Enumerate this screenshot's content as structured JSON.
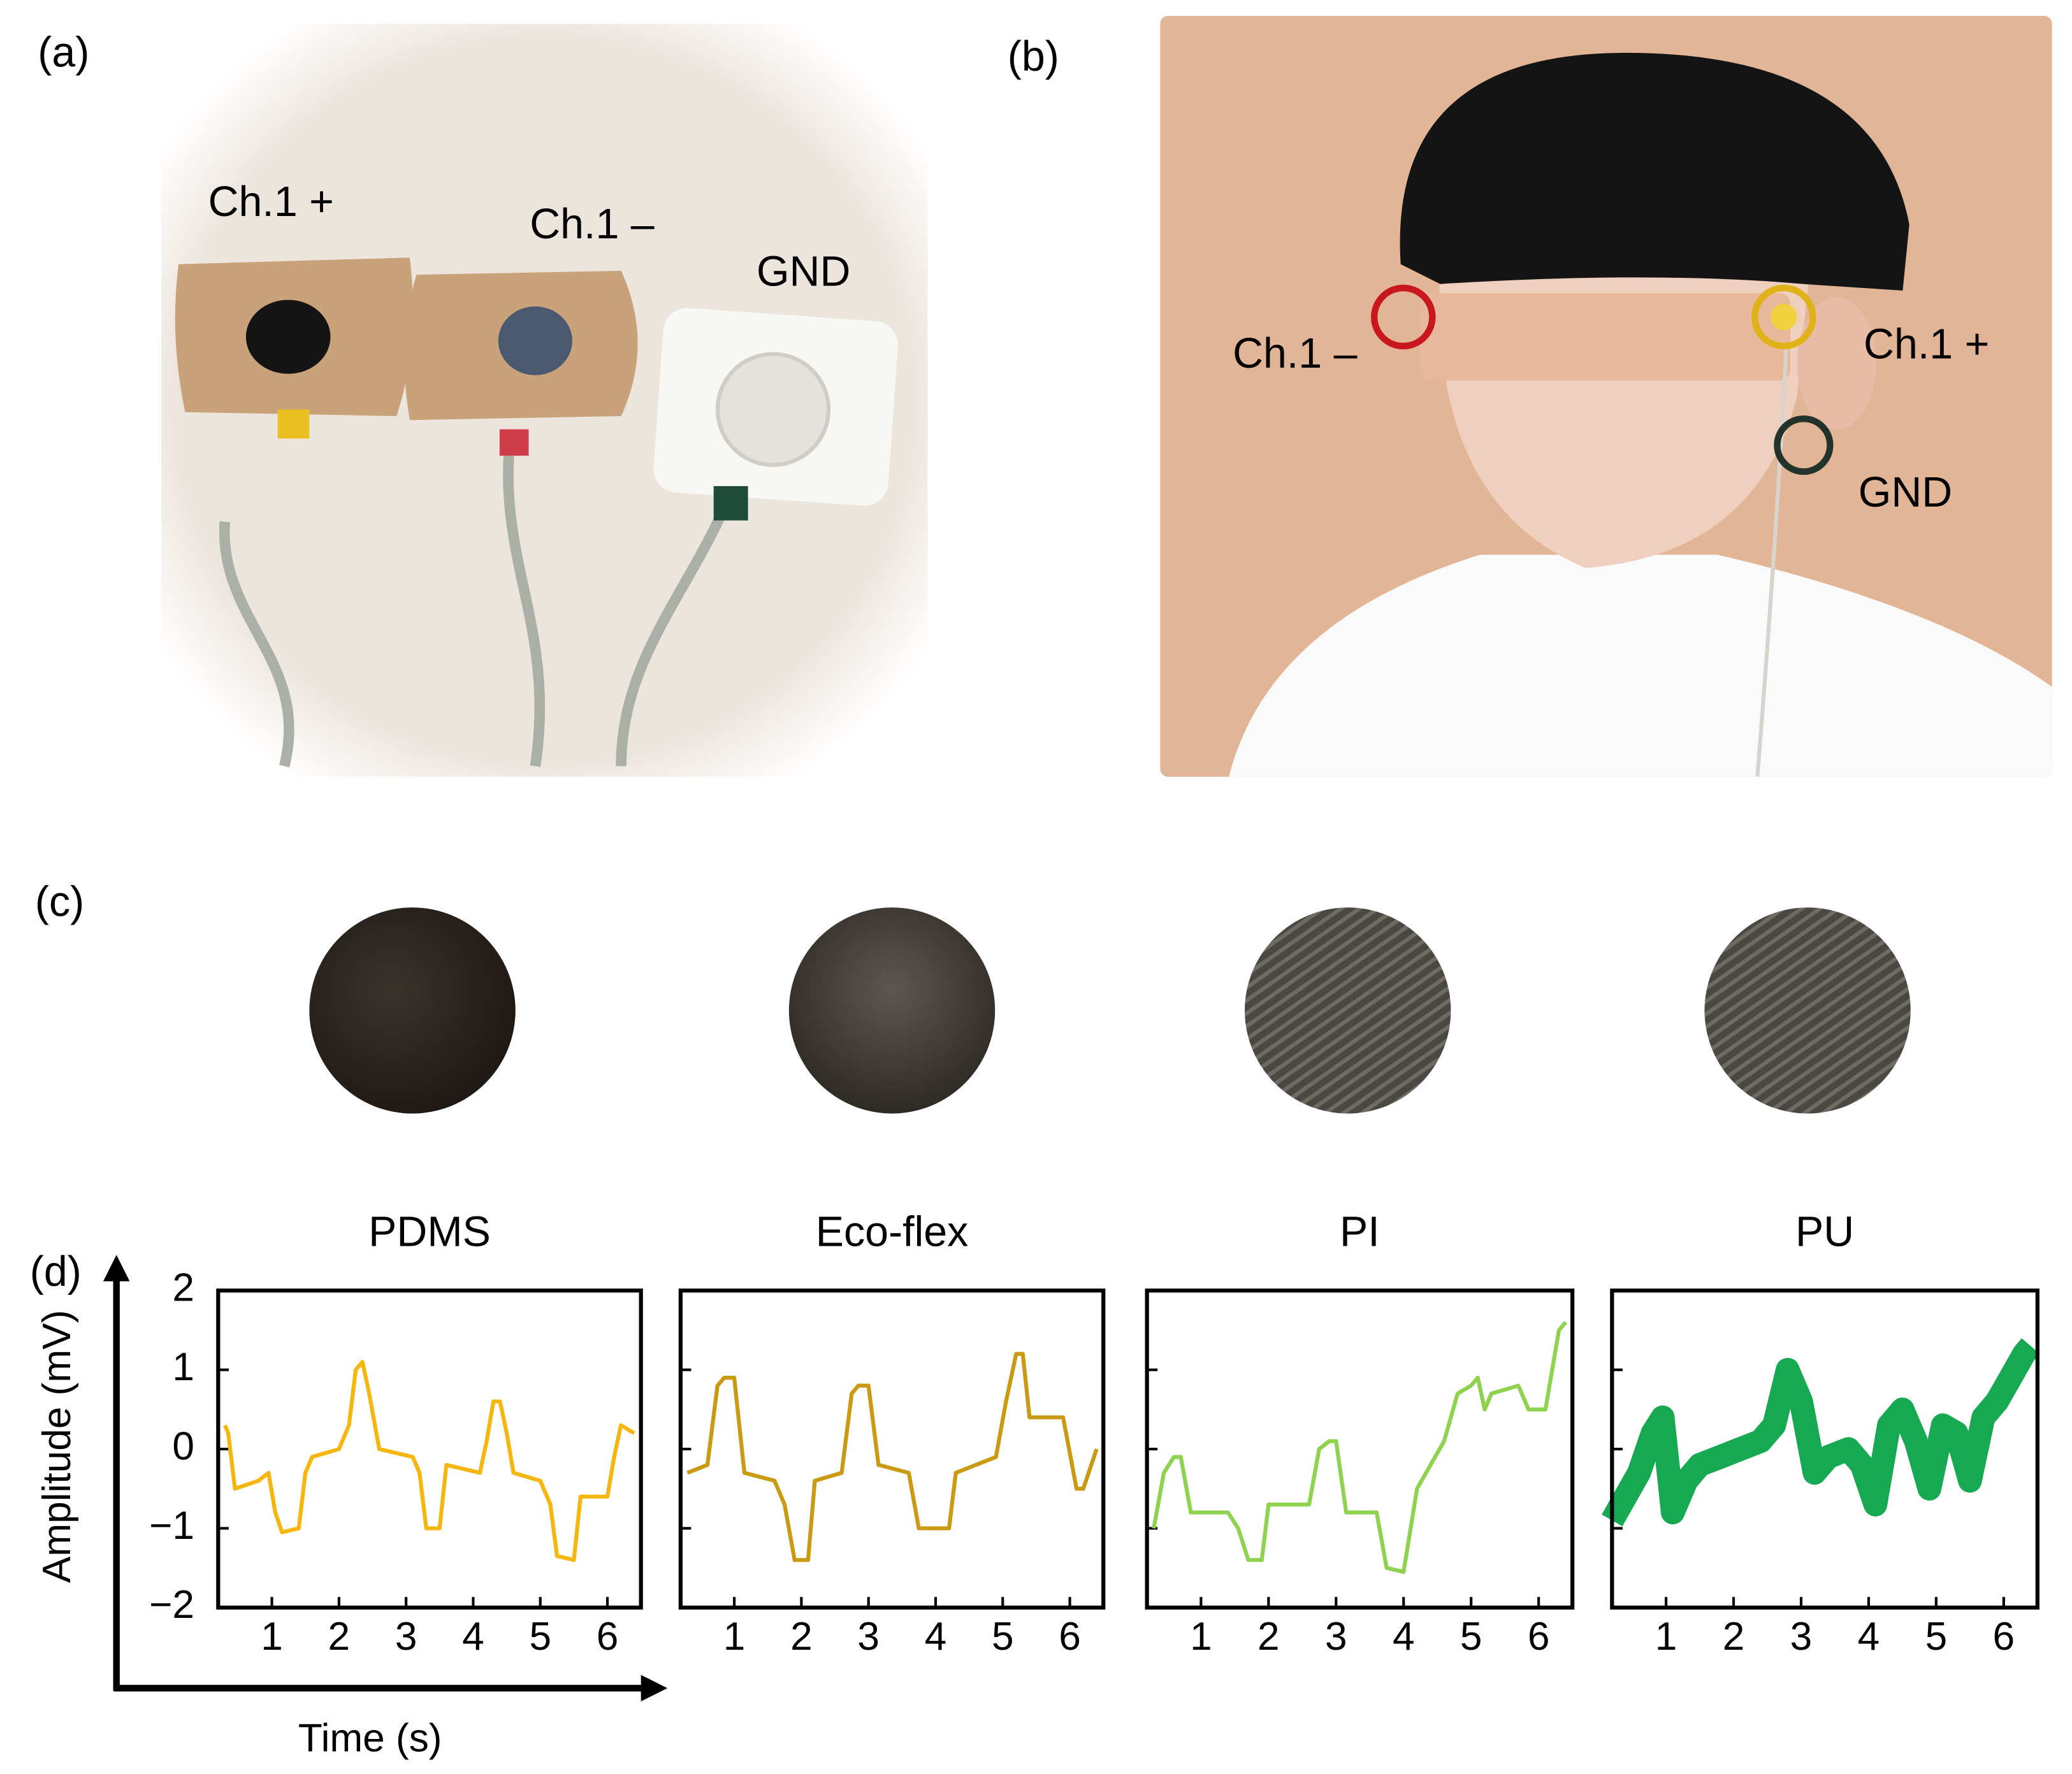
{
  "panel_labels": [
    "(a)",
    "(b)",
    "(c)",
    "(d)"
  ],
  "photo_a": {
    "labels": [
      "Ch.1 +",
      "Ch.1 –",
      "GND"
    ]
  },
  "photo_b": {
    "labels": [
      "Ch.1 –",
      "Ch.1 +",
      "GND"
    ]
  },
  "chart_data": [
    {
      "type": "line",
      "title": "PDMS",
      "xlabel": "Time (s)",
      "ylabel": "Amplitude (mV)",
      "color": "#f5b70f",
      "x": [
        0.3,
        0.35,
        0.45,
        0.8,
        0.95,
        1.05,
        1.15,
        1.4,
        1.5,
        1.6,
        2.0,
        2.15,
        2.25,
        2.35,
        2.45,
        2.6,
        3.1,
        3.2,
        3.3,
        3.5,
        3.6,
        4.1,
        4.2,
        4.3,
        4.4,
        4.5,
        4.6,
        5.0,
        5.15,
        5.25,
        5.5,
        5.6,
        6.0,
        6.1,
        6.2,
        6.4
      ],
      "values": [
        0.3,
        0.2,
        -0.5,
        -0.4,
        -0.3,
        -0.8,
        -1.05,
        -1.0,
        -0.3,
        -0.1,
        0.0,
        0.3,
        1.0,
        1.1,
        0.7,
        0.0,
        -0.1,
        -0.3,
        -1.0,
        -1.0,
        -0.2,
        -0.3,
        0.1,
        0.6,
        0.6,
        0.2,
        -0.3,
        -0.4,
        -0.7,
        -1.35,
        -1.4,
        -0.6,
        -0.6,
        -0.1,
        0.3,
        0.2
      ],
      "xlim": [
        0.2,
        6.5
      ],
      "xticks": [
        1,
        2,
        3,
        4,
        5,
        6
      ],
      "ylim": [
        -2,
        2
      ],
      "yticks": [
        2,
        1,
        0,
        {
          "value": -1,
          "label": "−1"
        },
        {
          "value": -2,
          "label": "−2"
        }
      ],
      "ytick_labels": true
    },
    {
      "type": "line",
      "title": "Eco-flex",
      "color": "#c99a12",
      "x": [
        0.3,
        0.6,
        0.75,
        0.85,
        1.0,
        1.15,
        1.6,
        1.75,
        1.9,
        2.1,
        2.2,
        2.6,
        2.75,
        2.85,
        3.0,
        3.15,
        3.6,
        3.75,
        4.2,
        4.3,
        4.9,
        5.05,
        5.2,
        5.3,
        5.4,
        5.9,
        6.1,
        6.2,
        6.4
      ],
      "values": [
        -0.3,
        -0.2,
        0.8,
        0.9,
        0.9,
        -0.3,
        -0.4,
        -0.7,
        -1.4,
        -1.4,
        -0.4,
        -0.3,
        0.7,
        0.8,
        0.8,
        -0.2,
        -0.3,
        -1.0,
        -1.0,
        -0.3,
        -0.1,
        0.6,
        1.2,
        1.2,
        0.4,
        0.4,
        -0.5,
        -0.5,
        0.0
      ],
      "xlim": [
        0.2,
        6.5
      ],
      "xticks": [
        1,
        2,
        3,
        4,
        5,
        6
      ],
      "ylim": [
        -2,
        2
      ],
      "yticks": [
        1,
        0,
        -1
      ],
      "ytick_labels": false
    },
    {
      "type": "line",
      "title": "PI",
      "color": "#8fd24f",
      "x": [
        0.3,
        0.45,
        0.6,
        0.7,
        0.85,
        1.4,
        1.55,
        1.7,
        1.9,
        2.0,
        2.6,
        2.75,
        2.9,
        3.0,
        3.15,
        3.6,
        3.75,
        4.0,
        4.2,
        4.6,
        4.8,
        5.0,
        5.1,
        5.2,
        5.3,
        5.7,
        5.85,
        6.1,
        6.3,
        6.4
      ],
      "values": [
        -1.0,
        -0.3,
        -0.1,
        -0.1,
        -0.8,
        -0.8,
        -1.0,
        -1.4,
        -1.4,
        -0.7,
        -0.7,
        0.0,
        0.1,
        0.1,
        -0.8,
        -0.8,
        -1.5,
        -1.55,
        -0.5,
        0.1,
        0.7,
        0.8,
        0.9,
        0.5,
        0.7,
        0.8,
        0.5,
        0.5,
        1.5,
        1.6
      ],
      "xlim": [
        0.2,
        6.5
      ],
      "xticks": [
        1,
        2,
        3,
        4,
        5,
        6
      ],
      "ylim": [
        -2,
        2
      ],
      "yticks": [
        1,
        0,
        -1
      ],
      "ytick_labels": false
    },
    {
      "type": "band",
      "title": "PU",
      "color": "#17a852",
      "x": [
        0.2,
        0.4,
        0.6,
        0.8,
        0.95,
        1.1,
        1.3,
        1.5,
        1.8,
        2.1,
        2.4,
        2.6,
        2.8,
        3.0,
        3.2,
        3.4,
        3.7,
        3.9,
        4.1,
        4.3,
        4.5,
        4.7,
        4.9,
        5.1,
        5.3,
        5.5,
        5.7,
        5.9,
        6.1,
        6.3,
        6.4
      ],
      "values": [
        -0.9,
        -0.6,
        -0.3,
        0.2,
        0.4,
        -0.8,
        -0.4,
        -0.2,
        -0.1,
        0.0,
        0.1,
        0.3,
        1.0,
        0.6,
        -0.3,
        -0.1,
        0.0,
        -0.2,
        -0.7,
        0.3,
        0.5,
        0.1,
        -0.5,
        0.3,
        0.2,
        -0.4,
        0.4,
        0.6,
        0.9,
        1.2,
        1.3
      ],
      "xlim": [
        0.2,
        6.5
      ],
      "xticks": [
        1,
        2,
        3,
        4,
        5,
        6
      ],
      "ylim": [
        -2,
        2
      ],
      "yticks": [
        1,
        0,
        -1
      ],
      "ytick_labels": false
    }
  ]
}
